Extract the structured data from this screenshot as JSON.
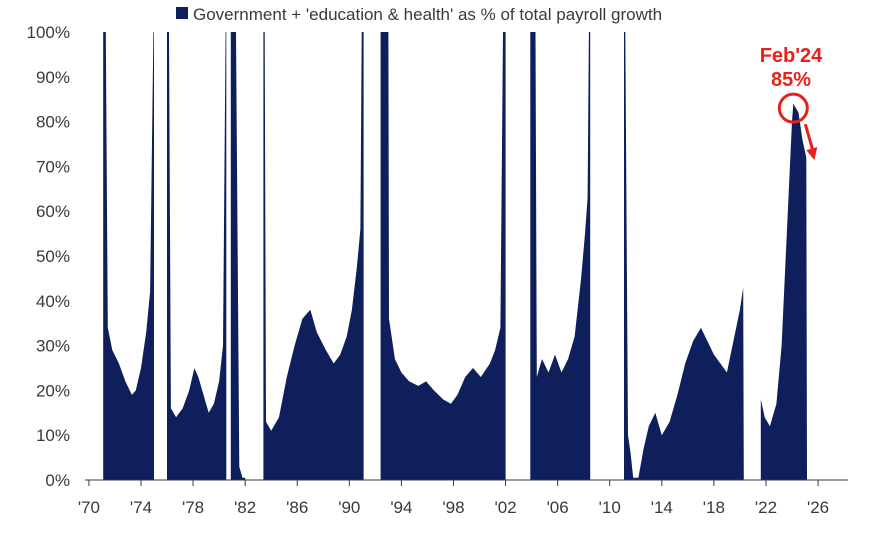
{
  "chart_data": {
    "type": "area",
    "legend": "Government + 'education & health' as % of total payroll growth",
    "legend_position": "top",
    "colors": {
      "series": "#0e1f5c",
      "annotation": "#e8211b",
      "axis": "#3a3a3a"
    },
    "y_ticks": [
      "0%",
      "10%",
      "20%",
      "30%",
      "40%",
      "50%",
      "60%",
      "70%",
      "80%",
      "90%",
      "100%"
    ],
    "x_ticks": [
      "'70",
      "'74",
      "'78",
      "'82",
      "'86",
      "'90",
      "'94",
      "'98",
      "'02",
      "'06",
      "'10",
      "'14",
      "'18",
      "'22",
      "'26"
    ],
    "xlim": [
      1970,
      2028
    ],
    "ylim": [
      0,
      100
    ],
    "grid": false,
    "annotation": {
      "line1": "Feb'24",
      "line2": "85%",
      "x": 2024.1,
      "y": 83
    },
    "series": [
      {
        "segments": [
          [
            [
              1971.1,
              100
            ],
            [
              1971.3,
              100
            ],
            [
              1971.45,
              34
            ],
            [
              1971.8,
              29
            ],
            [
              1972.3,
              26
            ],
            [
              1972.8,
              22
            ],
            [
              1973.3,
              19
            ],
            [
              1973.6,
              20
            ],
            [
              1974.0,
              25
            ],
            [
              1974.4,
              33
            ],
            [
              1974.7,
              42
            ],
            [
              1974.95,
              100
            ],
            [
              1975.0,
              100
            ]
          ],
          [
            [
              1976.0,
              100
            ],
            [
              1976.15,
              100
            ],
            [
              1976.3,
              16
            ],
            [
              1976.7,
              14
            ],
            [
              1977.2,
              16
            ],
            [
              1977.7,
              20
            ],
            [
              1978.1,
              25
            ],
            [
              1978.4,
              23
            ],
            [
              1978.8,
              19
            ],
            [
              1979.2,
              15
            ],
            [
              1979.6,
              17
            ],
            [
              1980.0,
              22
            ],
            [
              1980.3,
              30
            ],
            [
              1980.5,
              100
            ],
            [
              1980.55,
              100
            ]
          ],
          [
            [
              1980.9,
              100
            ],
            [
              1981.3,
              100
            ],
            [
              1981.55,
              3
            ],
            [
              1981.8,
              0.5
            ],
            [
              1982.0,
              0.5
            ]
          ],
          [
            [
              1983.4,
              100
            ],
            [
              1983.5,
              100
            ],
            [
              1983.6,
              13
            ],
            [
              1984.0,
              11
            ],
            [
              1984.6,
              14
            ],
            [
              1985.2,
              23
            ],
            [
              1985.8,
              30
            ],
            [
              1986.4,
              36
            ],
            [
              1987.0,
              38
            ],
            [
              1987.5,
              33
            ],
            [
              1988.2,
              29
            ],
            [
              1988.8,
              26
            ],
            [
              1989.3,
              28
            ],
            [
              1989.8,
              32
            ],
            [
              1990.2,
              38
            ],
            [
              1990.6,
              48
            ],
            [
              1990.85,
              56
            ],
            [
              1990.95,
              100
            ],
            [
              1991.1,
              100
            ]
          ],
          [
            [
              1992.4,
              100
            ],
            [
              1993.0,
              100
            ],
            [
              1993.05,
              36
            ],
            [
              1993.5,
              27
            ],
            [
              1994.0,
              24
            ],
            [
              1994.6,
              22
            ],
            [
              1995.3,
              21
            ],
            [
              1995.9,
              22
            ],
            [
              1996.5,
              20
            ],
            [
              1997.2,
              18
            ],
            [
              1997.8,
              17
            ],
            [
              1998.3,
              19
            ],
            [
              1998.9,
              23
            ],
            [
              1999.5,
              25
            ],
            [
              2000.1,
              23
            ],
            [
              2000.8,
              26
            ],
            [
              2001.2,
              29
            ],
            [
              2001.6,
              34
            ],
            [
              2001.8,
              100
            ],
            [
              2002.0,
              100
            ]
          ],
          [
            [
              2003.9,
              100
            ],
            [
              2004.3,
              100
            ],
            [
              2004.4,
              23
            ],
            [
              2004.8,
              27
            ],
            [
              2005.3,
              24
            ],
            [
              2005.8,
              28
            ],
            [
              2006.3,
              24
            ],
            [
              2006.8,
              27
            ],
            [
              2007.3,
              32
            ],
            [
              2007.8,
              45
            ],
            [
              2008.1,
              55
            ],
            [
              2008.3,
              63
            ],
            [
              2008.4,
              100
            ],
            [
              2008.5,
              100
            ]
          ],
          [
            [
              2011.1,
              100
            ],
            [
              2011.2,
              100
            ],
            [
              2011.4,
              10
            ],
            [
              2011.6,
              6
            ],
            [
              2011.8,
              0.5
            ],
            [
              2012.2,
              0.5
            ],
            [
              2012.6,
              7
            ],
            [
              2013.0,
              12
            ],
            [
              2013.5,
              15
            ],
            [
              2014.0,
              10
            ],
            [
              2014.6,
              13
            ],
            [
              2015.2,
              19
            ],
            [
              2015.8,
              26
            ],
            [
              2016.4,
              31
            ],
            [
              2017.0,
              34
            ],
            [
              2017.5,
              31
            ],
            [
              2018.0,
              28
            ],
            [
              2018.5,
              26
            ],
            [
              2019.0,
              24
            ],
            [
              2019.5,
              31
            ],
            [
              2020.0,
              38
            ],
            [
              2020.25,
              43
            ],
            [
              2020.3,
              0
            ],
            [
              2020.3,
              0
            ]
          ],
          [
            [
              2021.6,
              18
            ],
            [
              2021.9,
              14
            ],
            [
              2022.3,
              12
            ],
            [
              2022.8,
              17
            ],
            [
              2023.2,
              30
            ],
            [
              2023.6,
              55
            ],
            [
              2024.0,
              80
            ],
            [
              2024.1,
              84
            ],
            [
              2024.5,
              82
            ],
            [
              2024.8,
              76
            ],
            [
              2025.1,
              72
            ],
            [
              2025.15,
              0
            ]
          ]
        ]
      }
    ]
  }
}
